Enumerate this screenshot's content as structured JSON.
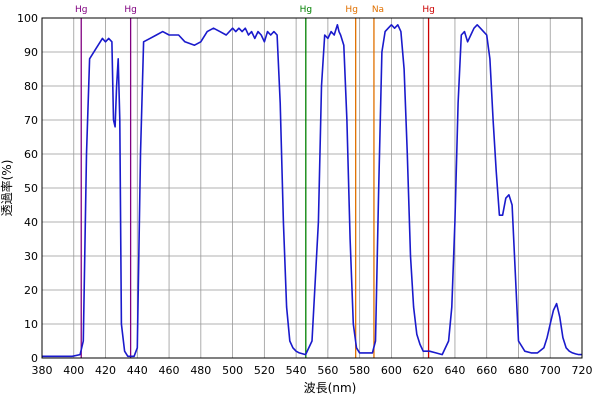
{
  "chart_data": {
    "type": "line",
    "xlabel": "波長(nm)",
    "ylabel": "透過率(%)",
    "xlim": [
      380,
      720
    ],
    "ylim": [
      0,
      100
    ],
    "x_ticks": [
      380,
      400,
      420,
      440,
      460,
      480,
      500,
      520,
      540,
      560,
      580,
      600,
      620,
      640,
      660,
      680,
      700,
      720
    ],
    "y_ticks": [
      0,
      10,
      20,
      30,
      40,
      50,
      60,
      70,
      80,
      90,
      100
    ],
    "grid": true,
    "series": [
      {
        "color": "#1a1acc",
        "x": [
          380,
          399,
          404,
          406,
          408,
          410,
          414,
          418,
          420,
          422,
          424,
          425,
          426,
          427,
          428,
          429,
          430,
          432,
          434,
          436,
          438,
          440,
          442,
          444,
          448,
          452,
          456,
          460,
          466,
          470,
          476,
          480,
          484,
          488,
          492,
          496,
          500,
          502,
          504,
          506,
          508,
          510,
          512,
          514,
          516,
          518,
          520,
          522,
          524,
          526,
          528,
          530,
          532,
          534,
          536,
          538,
          540,
          542,
          546,
          550,
          554,
          556,
          558,
          560,
          562,
          564,
          566,
          567,
          568,
          570,
          572,
          574,
          576,
          578,
          580,
          584,
          588,
          590,
          592,
          594,
          596,
          598,
          600,
          602,
          604,
          606,
          608,
          610,
          612,
          614,
          616,
          618,
          620,
          624,
          628,
          632,
          636,
          638,
          640,
          642,
          644,
          646,
          648,
          650,
          652,
          654,
          656,
          658,
          660,
          662,
          664,
          666,
          668,
          670,
          672,
          674,
          676,
          678,
          680,
          684,
          688,
          692,
          696,
          698,
          700,
          702,
          704,
          706,
          708,
          710,
          712,
          714,
          716,
          718,
          720
        ],
        "y": [
          0.5,
          0.5,
          1,
          5,
          60,
          88,
          91,
          94,
          93,
          94,
          93,
          70,
          68,
          80,
          88,
          70,
          10,
          2,
          0.5,
          0.5,
          0.5,
          3,
          60,
          93,
          94,
          95,
          96,
          95,
          95,
          93,
          92,
          93,
          96,
          97,
          96,
          95,
          97,
          96,
          97,
          96,
          97,
          95,
          96,
          94,
          96,
          95,
          93,
          96,
          95,
          96,
          95,
          75,
          40,
          15,
          5,
          3,
          2,
          1.5,
          1,
          5,
          40,
          80,
          95,
          94,
          96,
          95,
          98,
          96,
          95,
          92,
          70,
          35,
          10,
          3,
          1.5,
          1.5,
          1.5,
          5,
          50,
          90,
          96,
          97,
          98,
          97,
          98,
          96,
          85,
          60,
          30,
          15,
          7,
          4,
          2,
          2,
          1.5,
          1,
          5,
          15,
          40,
          75,
          95,
          96,
          93,
          95,
          97,
          98,
          97,
          96,
          95,
          88,
          70,
          55,
          42,
          42,
          47,
          48,
          45,
          25,
          5,
          2,
          1.5,
          1.5,
          3,
          6,
          10,
          14,
          16,
          12,
          6,
          3,
          2,
          1.5,
          1.2,
          1,
          1
        ]
      }
    ],
    "markers": [
      {
        "x": 404.7,
        "label": "Hg",
        "color": "#800080"
      },
      {
        "x": 435.8,
        "label": "Hg",
        "color": "#800080"
      },
      {
        "x": 546.1,
        "label": "Hg",
        "color": "#008000"
      },
      {
        "x": 577.5,
        "label": "Hg",
        "color": "#e07000"
      },
      {
        "x": 589.0,
        "label": "Na",
        "color": "#e07000"
      },
      {
        "x": 623.4,
        "label": "Hg",
        "color": "#cc0000"
      }
    ]
  }
}
